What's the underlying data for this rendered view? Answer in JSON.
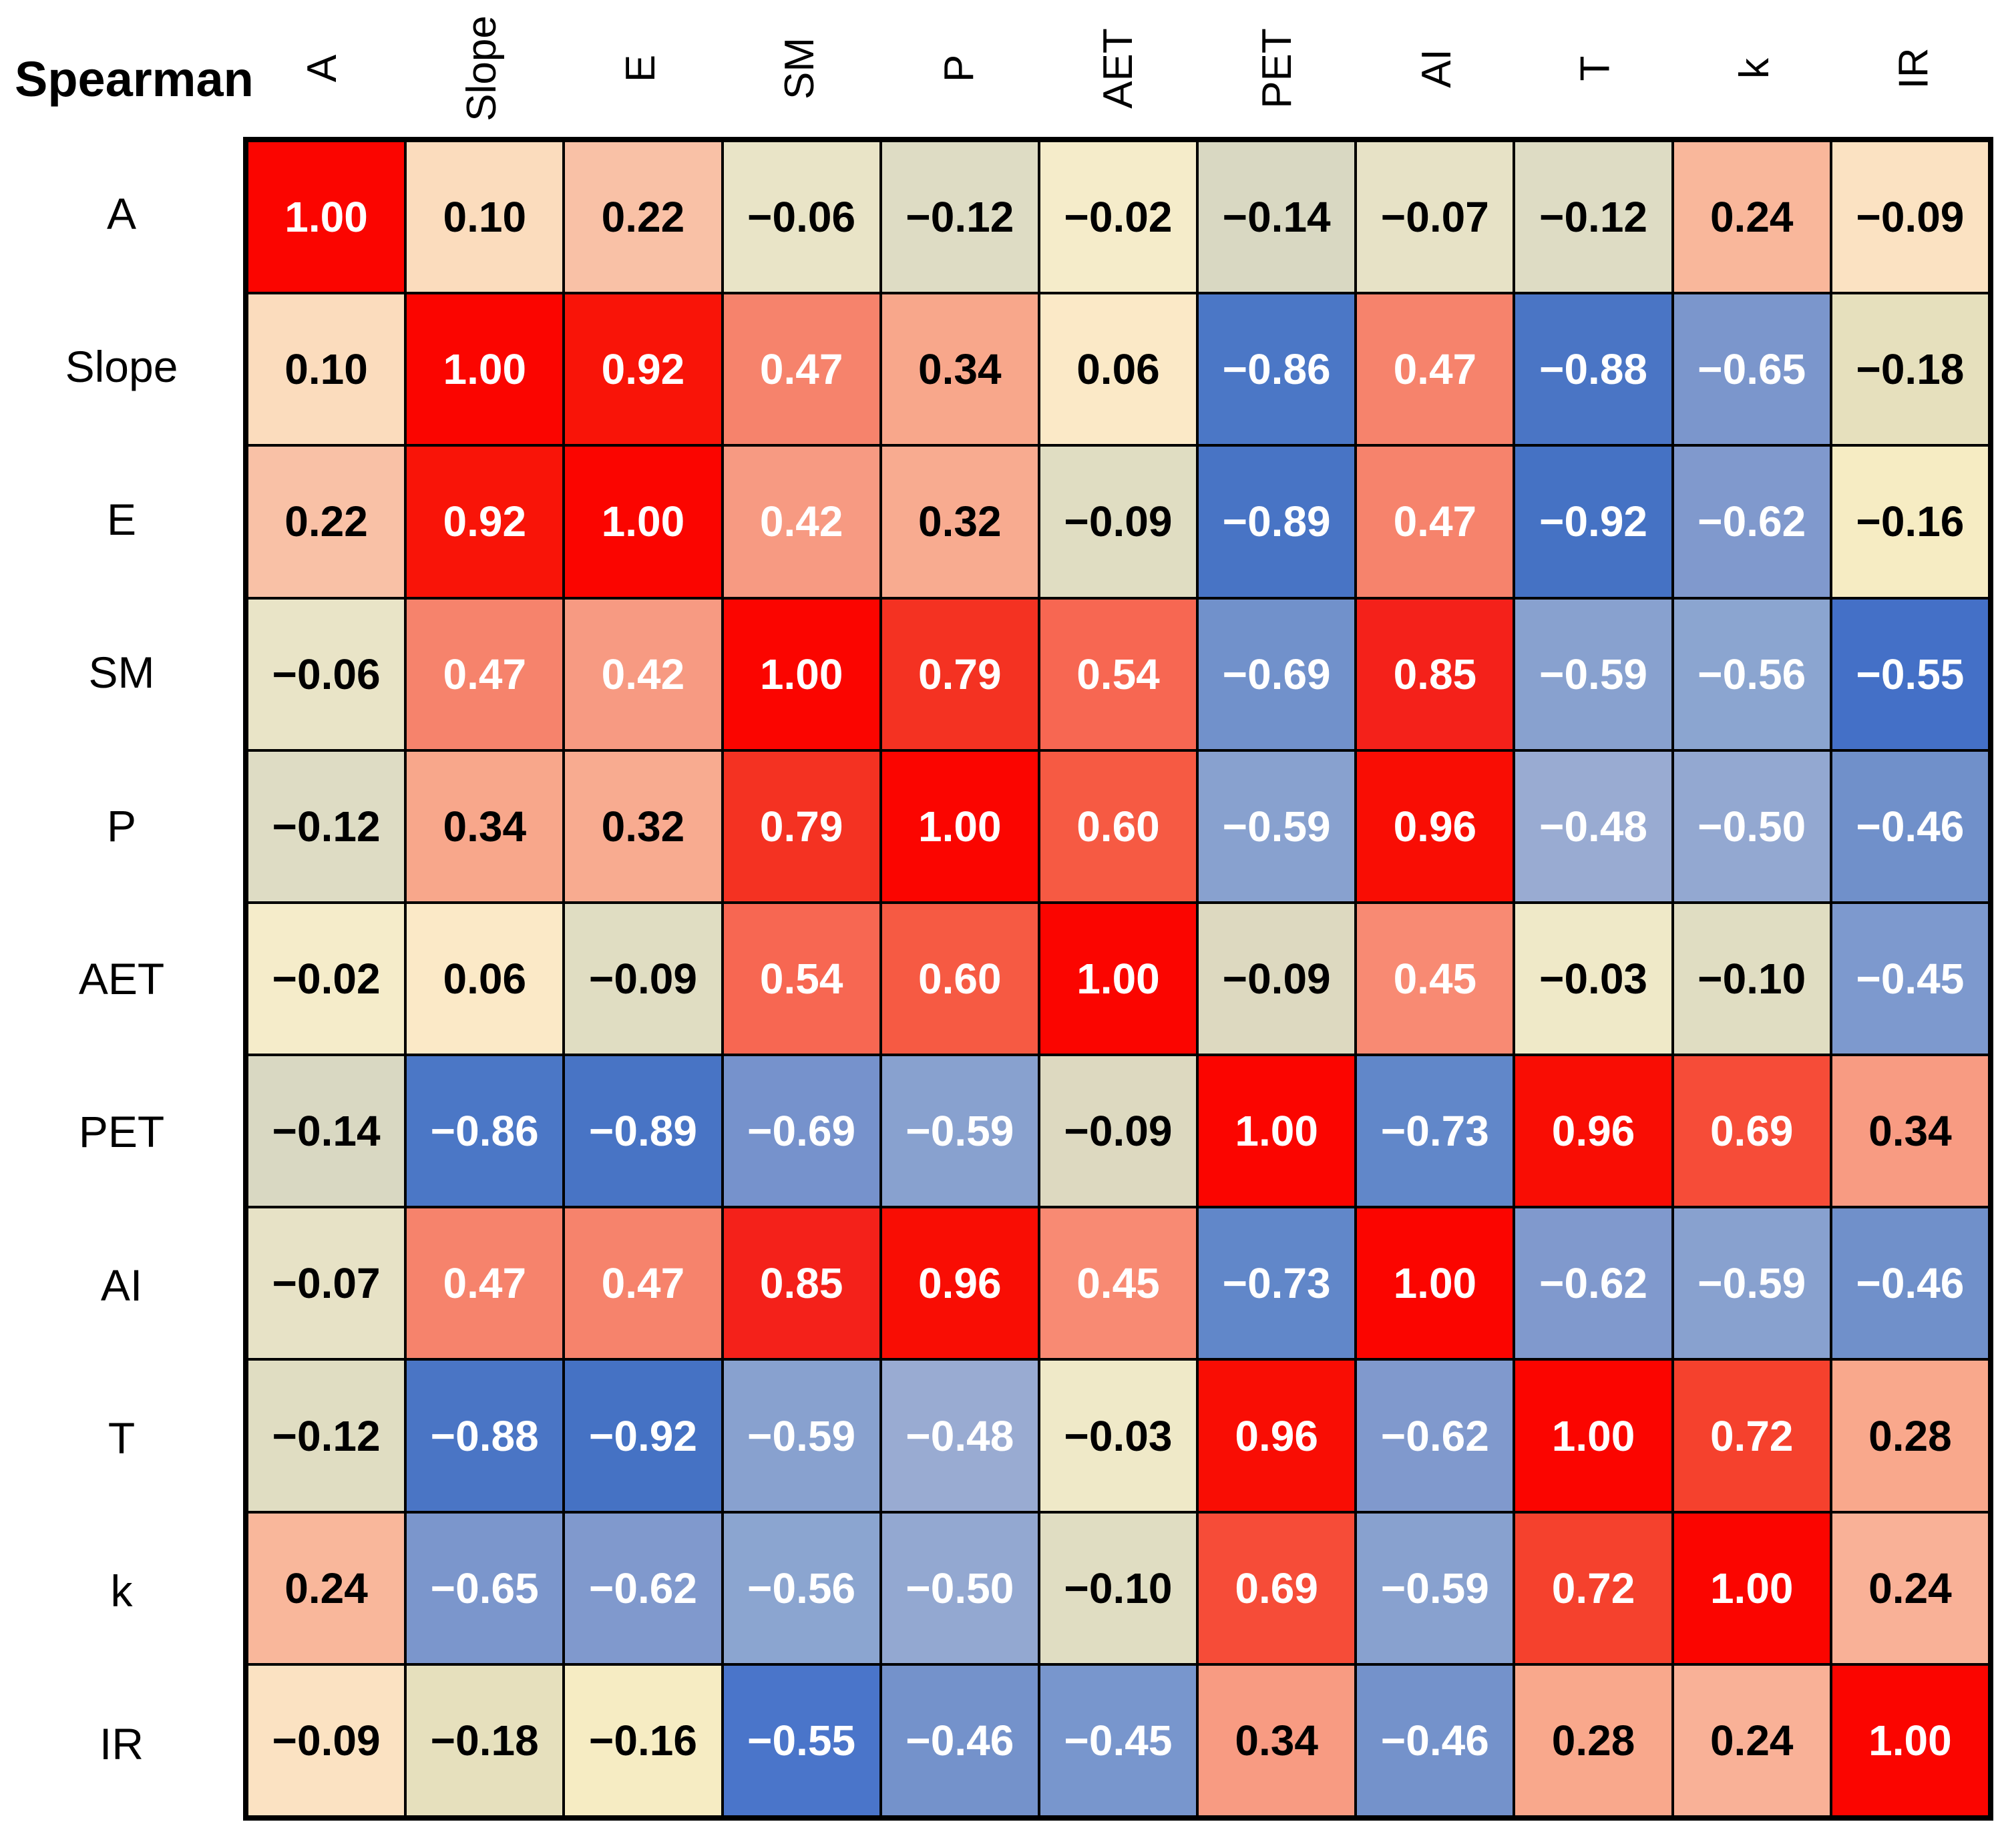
{
  "title": "Spearman",
  "chart_data": {
    "type": "heatmap",
    "title": "Spearman",
    "legend_position": "none",
    "grid": true,
    "value_range": [
      -1,
      1
    ],
    "variables": [
      "A",
      "Slope",
      "E",
      "SM",
      "P",
      "AET",
      "PET",
      "AI",
      "T",
      "k",
      "IR"
    ],
    "rows": [
      "A",
      "Slope",
      "E",
      "SM",
      "P",
      "AET",
      "PET",
      "AI",
      "T",
      "k",
      "IR"
    ],
    "cols": [
      "A",
      "Slope",
      "E",
      "SM",
      "P",
      "AET",
      "PET",
      "AI",
      "T",
      "k",
      "IR"
    ],
    "matrix": [
      [
        1.0,
        0.1,
        0.22,
        -0.06,
        -0.12,
        -0.02,
        -0.14,
        -0.07,
        -0.12,
        0.24,
        -0.09
      ],
      [
        0.1,
        1.0,
        0.92,
        0.47,
        0.34,
        0.06,
        -0.86,
        0.47,
        -0.88,
        -0.65,
        -0.18
      ],
      [
        0.22,
        0.92,
        1.0,
        0.42,
        0.32,
        -0.09,
        -0.89,
        0.47,
        -0.92,
        -0.62,
        -0.16
      ],
      [
        -0.06,
        0.47,
        0.42,
        1.0,
        0.79,
        0.54,
        -0.69,
        0.85,
        -0.59,
        -0.56,
        -0.55
      ],
      [
        -0.12,
        0.34,
        0.32,
        0.79,
        1.0,
        0.6,
        -0.59,
        0.96,
        -0.48,
        -0.5,
        -0.46
      ],
      [
        -0.02,
        0.06,
        -0.09,
        0.54,
        0.6,
        1.0,
        -0.09,
        0.45,
        -0.03,
        -0.1,
        -0.45
      ],
      [
        -0.14,
        -0.86,
        -0.89,
        -0.69,
        -0.59,
        -0.09,
        1.0,
        -0.73,
        0.96,
        0.69,
        0.34
      ],
      [
        -0.07,
        0.47,
        0.47,
        0.85,
        0.96,
        0.45,
        -0.73,
        1.0,
        -0.62,
        -0.59,
        -0.46
      ],
      [
        -0.12,
        -0.88,
        -0.92,
        -0.59,
        -0.48,
        -0.03,
        0.96,
        -0.62,
        1.0,
        0.72,
        0.28
      ],
      [
        0.24,
        -0.65,
        -0.62,
        -0.56,
        -0.5,
        -0.1,
        0.69,
        -0.59,
        0.72,
        1.0,
        0.24
      ],
      [
        -0.09,
        -0.18,
        -0.16,
        -0.55,
        -0.46,
        -0.45,
        0.34,
        -0.46,
        0.28,
        0.24,
        1.0
      ]
    ],
    "cell_colors": [
      [
        "#fb0500",
        "#fbdcbd",
        "#f9c1a6",
        "#e9e4c7",
        "#dedcc4",
        "#f5ecca",
        "#d9d8c2",
        "#e7e2c6",
        "#dedcc4",
        "#f9b79b",
        "#fbe2c2"
      ],
      [
        "#fbdcbd",
        "#fb0500",
        "#f91408",
        "#f6836c",
        "#f8a78b",
        "#fbe9c7",
        "#4b77c6",
        "#f6836c",
        "#4a75c5",
        "#7b96cc",
        "#e6e0bd"
      ],
      [
        "#f9c1a6",
        "#f91408",
        "#fb0500",
        "#f79a82",
        "#f8ab90",
        "#e0ddc2",
        "#4874c5",
        "#f6836c",
        "#4572c4",
        "#8099cd",
        "#f6ecc3"
      ],
      [
        "#e9e4c7",
        "#f6836c",
        "#f79a82",
        "#fb0500",
        "#f43222",
        "#f76752",
        "#7191cb",
        "#f4211a",
        "#88a1cf",
        "#8ba5d0",
        "#4470c7"
      ],
      [
        "#dedcc4",
        "#f8a78b",
        "#f8ab90",
        "#f43222",
        "#fb0500",
        "#f65a43",
        "#88a1cf",
        "#f90d04",
        "#99abd2",
        "#93a8d1",
        "#7090ca"
      ],
      [
        "#f5ecca",
        "#fbe9c7",
        "#e0ddc2",
        "#f76752",
        "#f65a43",
        "#fb0500",
        "#ddd9c0",
        "#f88a73",
        "#efe9c8",
        "#e0ddc2",
        "#7d99ce"
      ],
      [
        "#d9d8c2",
        "#4b77c6",
        "#4874c5",
        "#7692cc",
        "#88a1cf",
        "#ddd9c0",
        "#fb0500",
        "#6187c9",
        "#f90d04",
        "#f64c38",
        "#f89b82"
      ],
      [
        "#e7e2c6",
        "#f6836c",
        "#f6836c",
        "#f4211a",
        "#f90d04",
        "#f88a73",
        "#6187c9",
        "#fb0500",
        "#8099cd",
        "#88a1cf",
        "#7090ca"
      ],
      [
        "#e0ddc2",
        "#4a75c5",
        "#4572c4",
        "#88a1cf",
        "#99abd2",
        "#efe9c8",
        "#f90d04",
        "#8099cd",
        "#fb0500",
        "#f5412d",
        "#f9a88c"
      ],
      [
        "#f9b79b",
        "#7b96cc",
        "#8099cd",
        "#8ba5d0",
        "#93a8d1",
        "#e0ddc2",
        "#f64c38",
        "#88a1cf",
        "#f5412d",
        "#fb0500",
        "#f9b197"
      ],
      [
        "#fbe2c2",
        "#e6e0bd",
        "#f6ecc3",
        "#4a75ca",
        "#7492cb",
        "#7896cd",
        "#f89b82",
        "#7492cb",
        "#f9a88c",
        "#f9b197",
        "#fb0500"
      ]
    ],
    "text_colors": {
      "white": "#ffffff",
      "black": "#000000",
      "white_if_abs_value_gte": 0.42
    },
    "colors": {
      "positive_max": "#fb0500",
      "negative_strong": "#4470c7",
      "near_zero_positive": "#f8ecca",
      "near_zero_negative": "#e0ddc2",
      "grid_line": "#000000",
      "background": "#ffffff"
    }
  }
}
